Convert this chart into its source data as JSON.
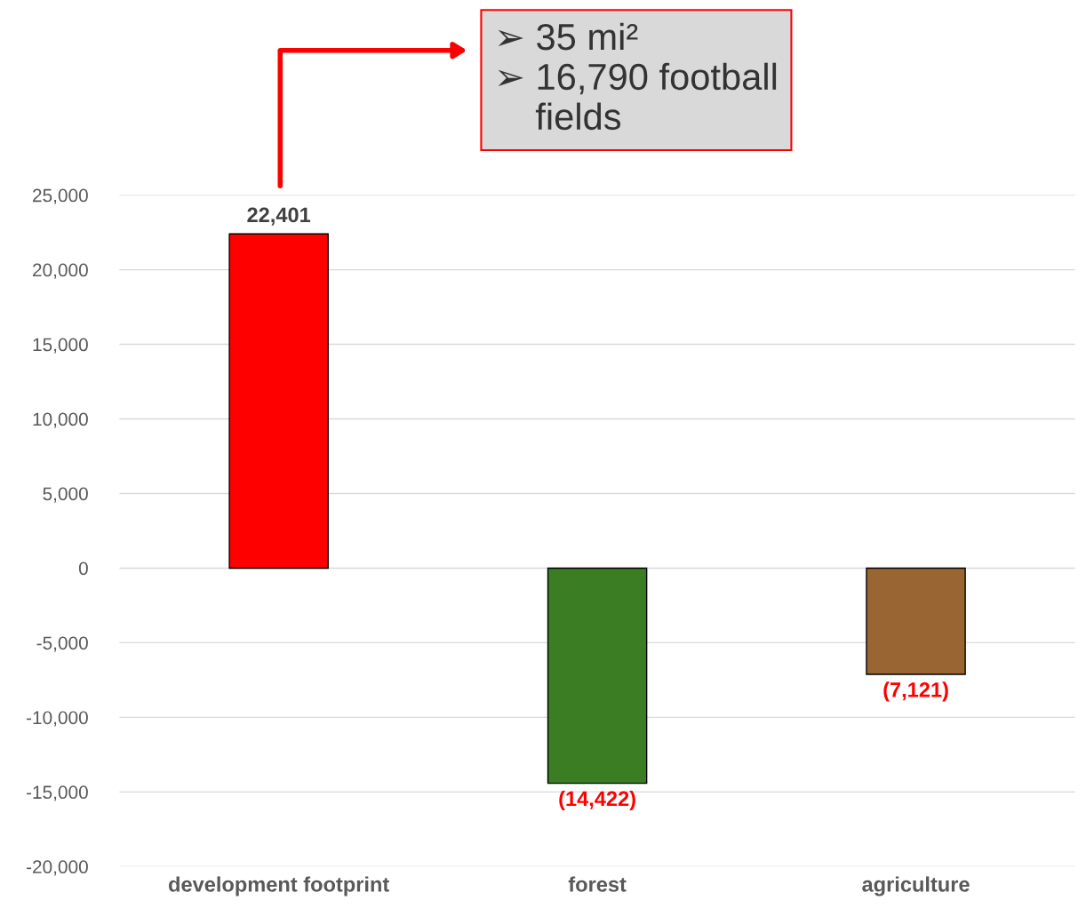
{
  "chart_data": {
    "type": "bar",
    "categories": [
      "development footprint",
      "forest",
      "agriculture"
    ],
    "values": [
      22401,
      -14422,
      -7121
    ],
    "colors": [
      "#ff0000",
      "#3b7d23",
      "#996633"
    ],
    "value_labels": [
      "22,401",
      "(14,422)",
      "(7,121)"
    ],
    "ylim": [
      -20000,
      25000
    ],
    "yticks": [
      {
        "value": -20000,
        "label": "-20,000"
      },
      {
        "value": -15000,
        "label": "-15,000"
      },
      {
        "value": -10000,
        "label": "-10,000"
      },
      {
        "value": -5000,
        "label": "-5,000"
      },
      0,
      {
        "value": 5000,
        "label": "5,000"
      },
      {
        "value": 10000,
        "label": "10,000"
      },
      {
        "value": 15000,
        "label": "15,000"
      },
      {
        "value": 20000,
        "label": "20,000"
      },
      {
        "value": 25000,
        "label": "25,000"
      }
    ],
    "grid": "y",
    "annotations": [
      "➢ 35 mi²\n➢ 16,790 football\n    fields"
    ]
  }
}
